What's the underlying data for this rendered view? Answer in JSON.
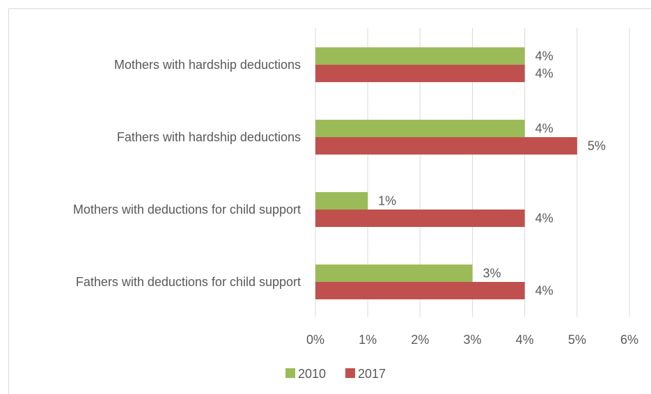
{
  "chart_data": {
    "type": "bar",
    "orientation": "horizontal",
    "categories": [
      "Mothers with hardship deductions",
      "Fathers with hardship deductions",
      "Mothers with deductions for child support",
      "Fathers with deductions for child support"
    ],
    "series": [
      {
        "name": "2010",
        "color": "#9bbb59",
        "values": [
          4,
          4,
          1,
          3
        ],
        "labels": [
          "4%",
          "4%",
          "1%",
          "3%"
        ]
      },
      {
        "name": "2017",
        "color": "#c0504d",
        "values": [
          4,
          5,
          4,
          4
        ],
        "labels": [
          "4%",
          "5%",
          "4%",
          "4%"
        ]
      }
    ],
    "xlim": [
      0,
      6
    ],
    "x_ticks": [
      "0%",
      "1%",
      "2%",
      "3%",
      "4%",
      "5%",
      "6%"
    ],
    "grid": true,
    "legend_position": "bottom"
  }
}
